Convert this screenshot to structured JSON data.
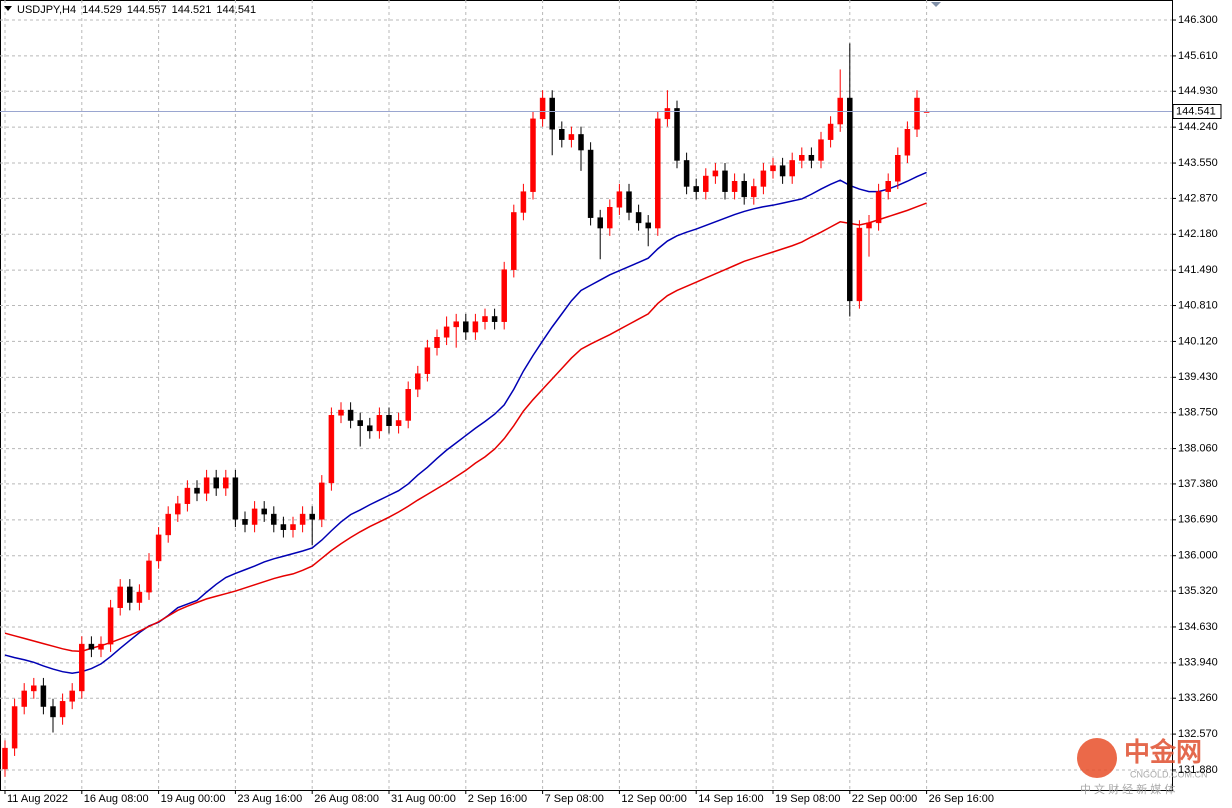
{
  "chart_data": {
    "type": "candlestick",
    "symbol": "USDJPY,H4",
    "categories": [
      "11 Aug 2022",
      null,
      null,
      null,
      null,
      null,
      null,
      null,
      "16 Aug 08:00",
      null,
      null,
      null,
      null,
      null,
      null,
      null,
      "19 Aug 00:00",
      null,
      null,
      null,
      null,
      null,
      null,
      null,
      "23 Aug 16:00",
      null,
      null,
      null,
      null,
      null,
      null,
      null,
      "26 Aug 08:00",
      null,
      null,
      null,
      null,
      null,
      null,
      null,
      "31 Aug 00:00",
      null,
      null,
      null,
      null,
      null,
      null,
      null,
      "2 Sep 16:00",
      null,
      null,
      null,
      null,
      null,
      null,
      null,
      "7 Sep 08:00",
      null,
      null,
      null,
      null,
      null,
      null,
      null,
      "12 Sep 00:00",
      null,
      null,
      null,
      null,
      null,
      null,
      null,
      "14 Sep 16:00",
      null,
      null,
      null,
      null,
      null,
      null,
      null,
      "19 Sep 08:00",
      null,
      null,
      null,
      null,
      null,
      null,
      null,
      "22 Sep 00:00",
      null,
      null,
      null,
      null,
      null,
      null,
      null,
      "26 Sep 16:00"
    ],
    "open": [
      131.9,
      132.3,
      133.1,
      133.4,
      133.5,
      133.1,
      132.9,
      133.2,
      133.4,
      134.3,
      134.2,
      134.3,
      135.0,
      135.4,
      135.1,
      135.3,
      135.9,
      136.4,
      136.8,
      137.0,
      137.3,
      137.2,
      137.5,
      137.3,
      137.5,
      136.7,
      136.6,
      136.9,
      136.8,
      136.6,
      136.5,
      136.6,
      136.8,
      136.7,
      137.4,
      138.7,
      138.8,
      138.6,
      138.5,
      138.4,
      138.7,
      138.5,
      138.6,
      139.2,
      139.5,
      140.0,
      140.2,
      140.4,
      140.5,
      140.3,
      140.5,
      140.6,
      140.5,
      141.5,
      142.6,
      143.0,
      144.4,
      144.8,
      144.2,
      144.0,
      144.1,
      143.8,
      142.5,
      142.3,
      142.7,
      143.0,
      142.6,
      142.4,
      142.3,
      144.4,
      144.6,
      143.6,
      143.1,
      143.0,
      143.3,
      143.4,
      143.0,
      143.2,
      142.9,
      143.1,
      143.4,
      143.5,
      143.3,
      143.6,
      143.7,
      143.6,
      144.0,
      144.3,
      144.8,
      140.9,
      142.3,
      142.4,
      143.0,
      143.2,
      143.7,
      144.2,
      144.529
    ],
    "high": [
      132.45,
      133.25,
      133.55,
      133.65,
      133.65,
      133.25,
      133.35,
      133.55,
      134.45,
      134.45,
      134.45,
      135.15,
      135.55,
      135.55,
      135.45,
      136.05,
      136.55,
      136.95,
      137.15,
      137.45,
      137.45,
      137.65,
      137.65,
      137.65,
      137.65,
      136.85,
      137.05,
      137.05,
      136.95,
      136.75,
      136.75,
      136.95,
      136.95,
      137.55,
      138.85,
      138.95,
      138.95,
      138.75,
      138.65,
      138.85,
      138.85,
      138.75,
      139.35,
      139.65,
      140.15,
      140.35,
      140.6,
      140.65,
      140.65,
      140.65,
      140.75,
      140.75,
      141.65,
      142.75,
      143.15,
      144.55,
      144.95,
      144.95,
      144.35,
      144.25,
      144.25,
      143.95,
      142.65,
      142.85,
      143.15,
      143.15,
      142.75,
      142.55,
      144.55,
      144.95,
      144.75,
      143.75,
      143.25,
      143.45,
      143.55,
      143.55,
      143.35,
      143.35,
      143.25,
      143.55,
      143.65,
      143.65,
      143.75,
      143.85,
      143.85,
      144.15,
      144.45,
      145.35,
      145.85,
      142.45,
      142.55,
      143.15,
      143.35,
      143.85,
      144.35,
      144.95,
      144.557
    ],
    "low": [
      131.75,
      132.15,
      132.95,
      133.25,
      132.95,
      132.6,
      132.75,
      133.05,
      133.25,
      134.05,
      134.05,
      134.15,
      134.85,
      134.95,
      134.95,
      135.15,
      135.75,
      136.25,
      136.65,
      136.85,
      137.05,
      137.05,
      137.15,
      137.15,
      136.55,
      136.45,
      136.45,
      136.65,
      136.45,
      136.35,
      136.35,
      136.45,
      136.2,
      136.55,
      137.25,
      138.55,
      138.45,
      138.1,
      138.25,
      138.25,
      138.35,
      138.35,
      138.45,
      139.05,
      139.35,
      139.85,
      140.05,
      140.0,
      140.15,
      140.15,
      140.35,
      140.35,
      140.35,
      141.35,
      142.45,
      142.85,
      144.25,
      143.7,
      143.85,
      143.85,
      143.4,
      142.35,
      141.7,
      142.15,
      142.55,
      142.45,
      142.25,
      141.95,
      142.15,
      144.25,
      143.45,
      142.95,
      142.85,
      142.85,
      143.15,
      142.85,
      142.85,
      142.75,
      142.75,
      142.95,
      143.25,
      143.15,
      143.15,
      143.45,
      143.45,
      143.45,
      143.85,
      144.15,
      140.6,
      140.75,
      141.75,
      142.25,
      142.85,
      143.05,
      143.55,
      144.05,
      144.521
    ],
    "close": [
      132.3,
      133.1,
      133.4,
      133.5,
      133.1,
      132.9,
      133.2,
      133.4,
      134.3,
      134.2,
      134.3,
      135.0,
      135.4,
      135.1,
      135.3,
      135.9,
      136.4,
      136.8,
      137.0,
      137.3,
      137.2,
      137.5,
      137.3,
      137.5,
      136.7,
      136.6,
      136.9,
      136.8,
      136.6,
      136.5,
      136.6,
      136.8,
      136.7,
      137.4,
      138.7,
      138.8,
      138.6,
      138.5,
      138.4,
      138.7,
      138.5,
      138.6,
      139.2,
      139.5,
      140.0,
      140.2,
      140.4,
      140.5,
      140.3,
      140.5,
      140.6,
      140.5,
      141.5,
      142.6,
      143.0,
      144.4,
      144.8,
      144.2,
      144.0,
      144.1,
      143.8,
      142.5,
      142.3,
      142.7,
      143.0,
      142.6,
      142.4,
      142.3,
      144.4,
      144.6,
      143.6,
      143.1,
      143.0,
      143.3,
      143.4,
      143.0,
      143.2,
      142.9,
      143.1,
      143.4,
      143.5,
      143.3,
      143.6,
      143.7,
      143.6,
      144.0,
      144.3,
      144.8,
      140.9,
      142.3,
      142.4,
      143.0,
      143.2,
      143.7,
      144.2,
      144.8,
      144.541
    ],
    "up_color": "#ff0000",
    "down_color": "#000000",
    "price_line_color": "#9aa6d0",
    "ma": [
      {
        "color": "#0000b4",
        "values": [
          134.09,
          134.04,
          134.0,
          133.95,
          133.88,
          133.82,
          133.77,
          133.74,
          133.77,
          133.83,
          133.92,
          134.06,
          134.22,
          134.37,
          134.52,
          134.65,
          134.72,
          134.85,
          135.0,
          135.07,
          135.14,
          135.3,
          135.45,
          135.58,
          135.66,
          135.73,
          135.8,
          135.88,
          135.94,
          135.99,
          136.04,
          136.09,
          136.15,
          136.3,
          136.48,
          136.65,
          136.79,
          136.88,
          136.98,
          137.07,
          137.16,
          137.25,
          137.38,
          137.55,
          137.7,
          137.87,
          138.03,
          138.17,
          138.31,
          138.45,
          138.58,
          138.72,
          138.9,
          139.2,
          139.55,
          139.85,
          140.13,
          140.4,
          140.65,
          140.9,
          141.1,
          141.2,
          141.3,
          141.4,
          141.48,
          141.56,
          141.64,
          141.72,
          141.9,
          142.05,
          142.15,
          142.22,
          142.28,
          142.35,
          142.42,
          142.49,
          142.56,
          142.62,
          142.67,
          142.71,
          142.74,
          142.78,
          142.82,
          142.86,
          142.95,
          143.05,
          143.14,
          143.22,
          143.12,
          143.05,
          143.0,
          143.0,
          143.05,
          143.12,
          143.2,
          143.29,
          143.37
        ]
      },
      {
        "color": "#e60000",
        "values": [
          134.51,
          134.46,
          134.41,
          134.36,
          134.31,
          134.26,
          134.21,
          134.17,
          134.16,
          134.22,
          134.27,
          134.33,
          134.4,
          134.47,
          134.55,
          134.64,
          134.73,
          134.84,
          134.95,
          135.03,
          135.1,
          135.17,
          135.22,
          135.27,
          135.32,
          135.38,
          135.44,
          135.5,
          135.56,
          135.61,
          135.65,
          135.72,
          135.8,
          135.95,
          136.1,
          136.23,
          136.35,
          136.46,
          136.56,
          136.65,
          136.74,
          136.84,
          136.95,
          137.07,
          137.18,
          137.29,
          137.4,
          137.52,
          137.64,
          137.78,
          137.9,
          138.05,
          138.25,
          138.5,
          138.78,
          139.0,
          139.2,
          139.4,
          139.6,
          139.8,
          139.97,
          140.07,
          140.16,
          140.25,
          140.35,
          140.45,
          140.55,
          140.65,
          140.85,
          141.0,
          141.1,
          141.18,
          141.26,
          141.34,
          141.42,
          141.5,
          141.58,
          141.66,
          141.72,
          141.78,
          141.84,
          141.9,
          141.96,
          142.03,
          142.13,
          142.22,
          142.32,
          142.42,
          142.39,
          142.36,
          142.4,
          142.46,
          142.52,
          142.58,
          142.64,
          142.71,
          142.78
        ]
      }
    ],
    "ylim": [
      131.495,
      146.685
    ],
    "yticks": [
      {
        "value": 146.3,
        "label": "146.300"
      },
      {
        "value": 145.61,
        "label": "145.610"
      },
      {
        "value": 144.93,
        "label": "144.930"
      },
      {
        "value": 144.24,
        "label": "144.240"
      },
      {
        "value": 143.55,
        "label": "143.550"
      },
      {
        "value": 142.87,
        "label": "142.870"
      },
      {
        "value": 142.18,
        "label": "142.180"
      },
      {
        "value": 141.49,
        "label": "141.490"
      },
      {
        "value": 140.81,
        "label": "140.810"
      },
      {
        "value": 140.12,
        "label": "140.120"
      },
      {
        "value": 139.43,
        "label": "139.430"
      },
      {
        "value": 138.75,
        "label": "138.750"
      },
      {
        "value": 138.06,
        "label": "138.060"
      },
      {
        "value": 137.38,
        "label": "137.380"
      },
      {
        "value": 136.69,
        "label": "136.690"
      },
      {
        "value": 136.0,
        "label": "136.000"
      },
      {
        "value": 135.32,
        "label": "135.320"
      },
      {
        "value": 134.63,
        "label": "134.630"
      },
      {
        "value": 133.94,
        "label": "133.940"
      },
      {
        "value": 133.26,
        "label": "133.260"
      },
      {
        "value": 132.57,
        "label": "132.570"
      },
      {
        "value": 131.88,
        "label": "131.880"
      }
    ],
    "grid": true,
    "watermark": {
      "logo": "中金网",
      "site": "CNGOLD.COM.CN",
      "slogan": "中 文 财 经 新 媒 体"
    }
  }
}
